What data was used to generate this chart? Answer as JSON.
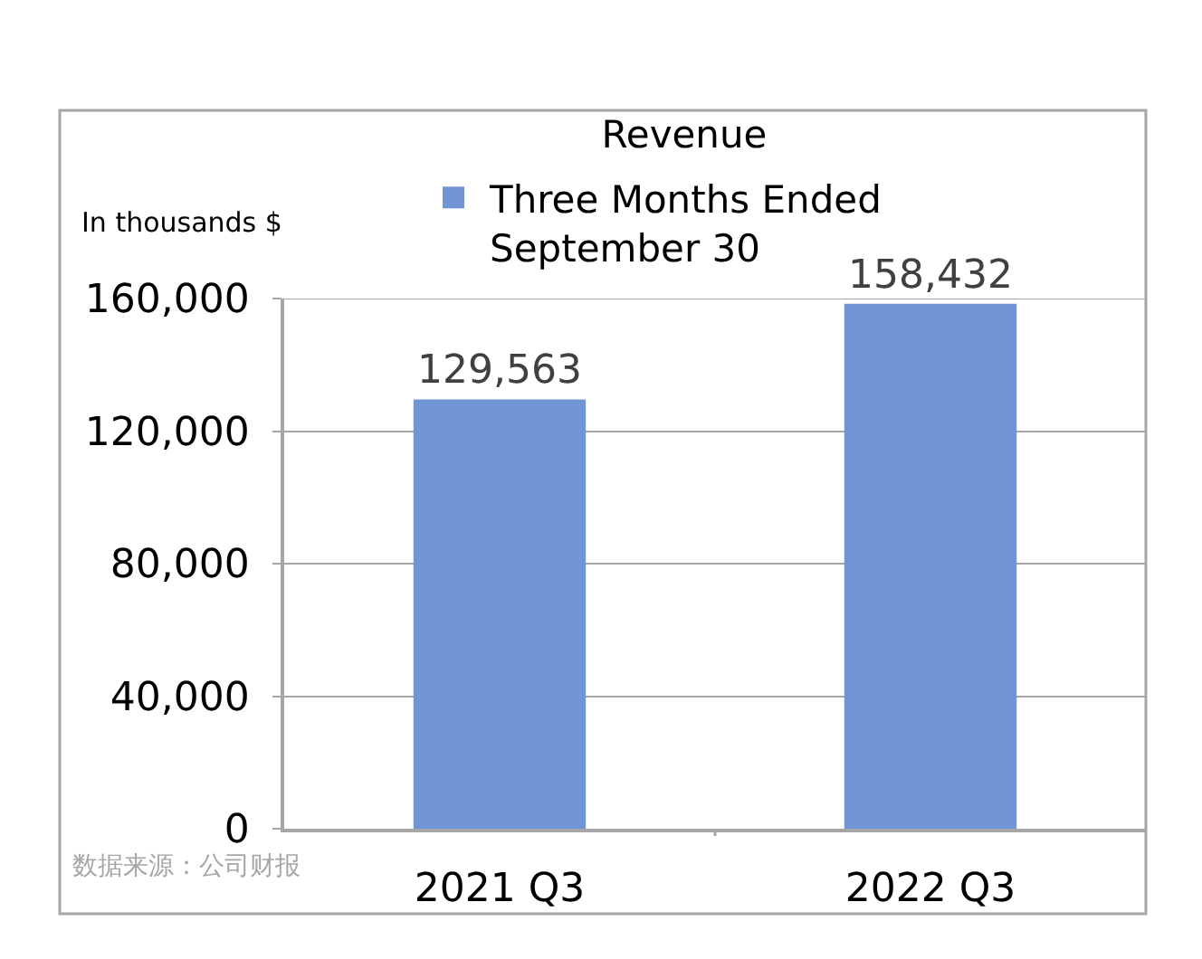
{
  "chart_data": {
    "type": "bar",
    "title": "Revenue",
    "ylabel": "In thousands $",
    "categories": [
      "2021 Q3",
      "2022 Q3"
    ],
    "series": [
      {
        "name": "Three Months Ended September 30",
        "color": "#7094d4",
        "values": [
          129563,
          158432
        ],
        "value_labels": [
          "129,563",
          "158,432"
        ]
      }
    ],
    "ylim": [
      0,
      160000
    ],
    "yticks": [
      0,
      {
        "value": 40000,
        "label": "40,000"
      },
      {
        "value": 80000,
        "label": "80,000"
      },
      {
        "value": 120000,
        "label": "120,000"
      },
      {
        "value": 160000,
        "label": "160,000"
      }
    ],
    "grid": "y",
    "legend": "top",
    "annotations": [
      "数据来源：公司财报"
    ]
  }
}
